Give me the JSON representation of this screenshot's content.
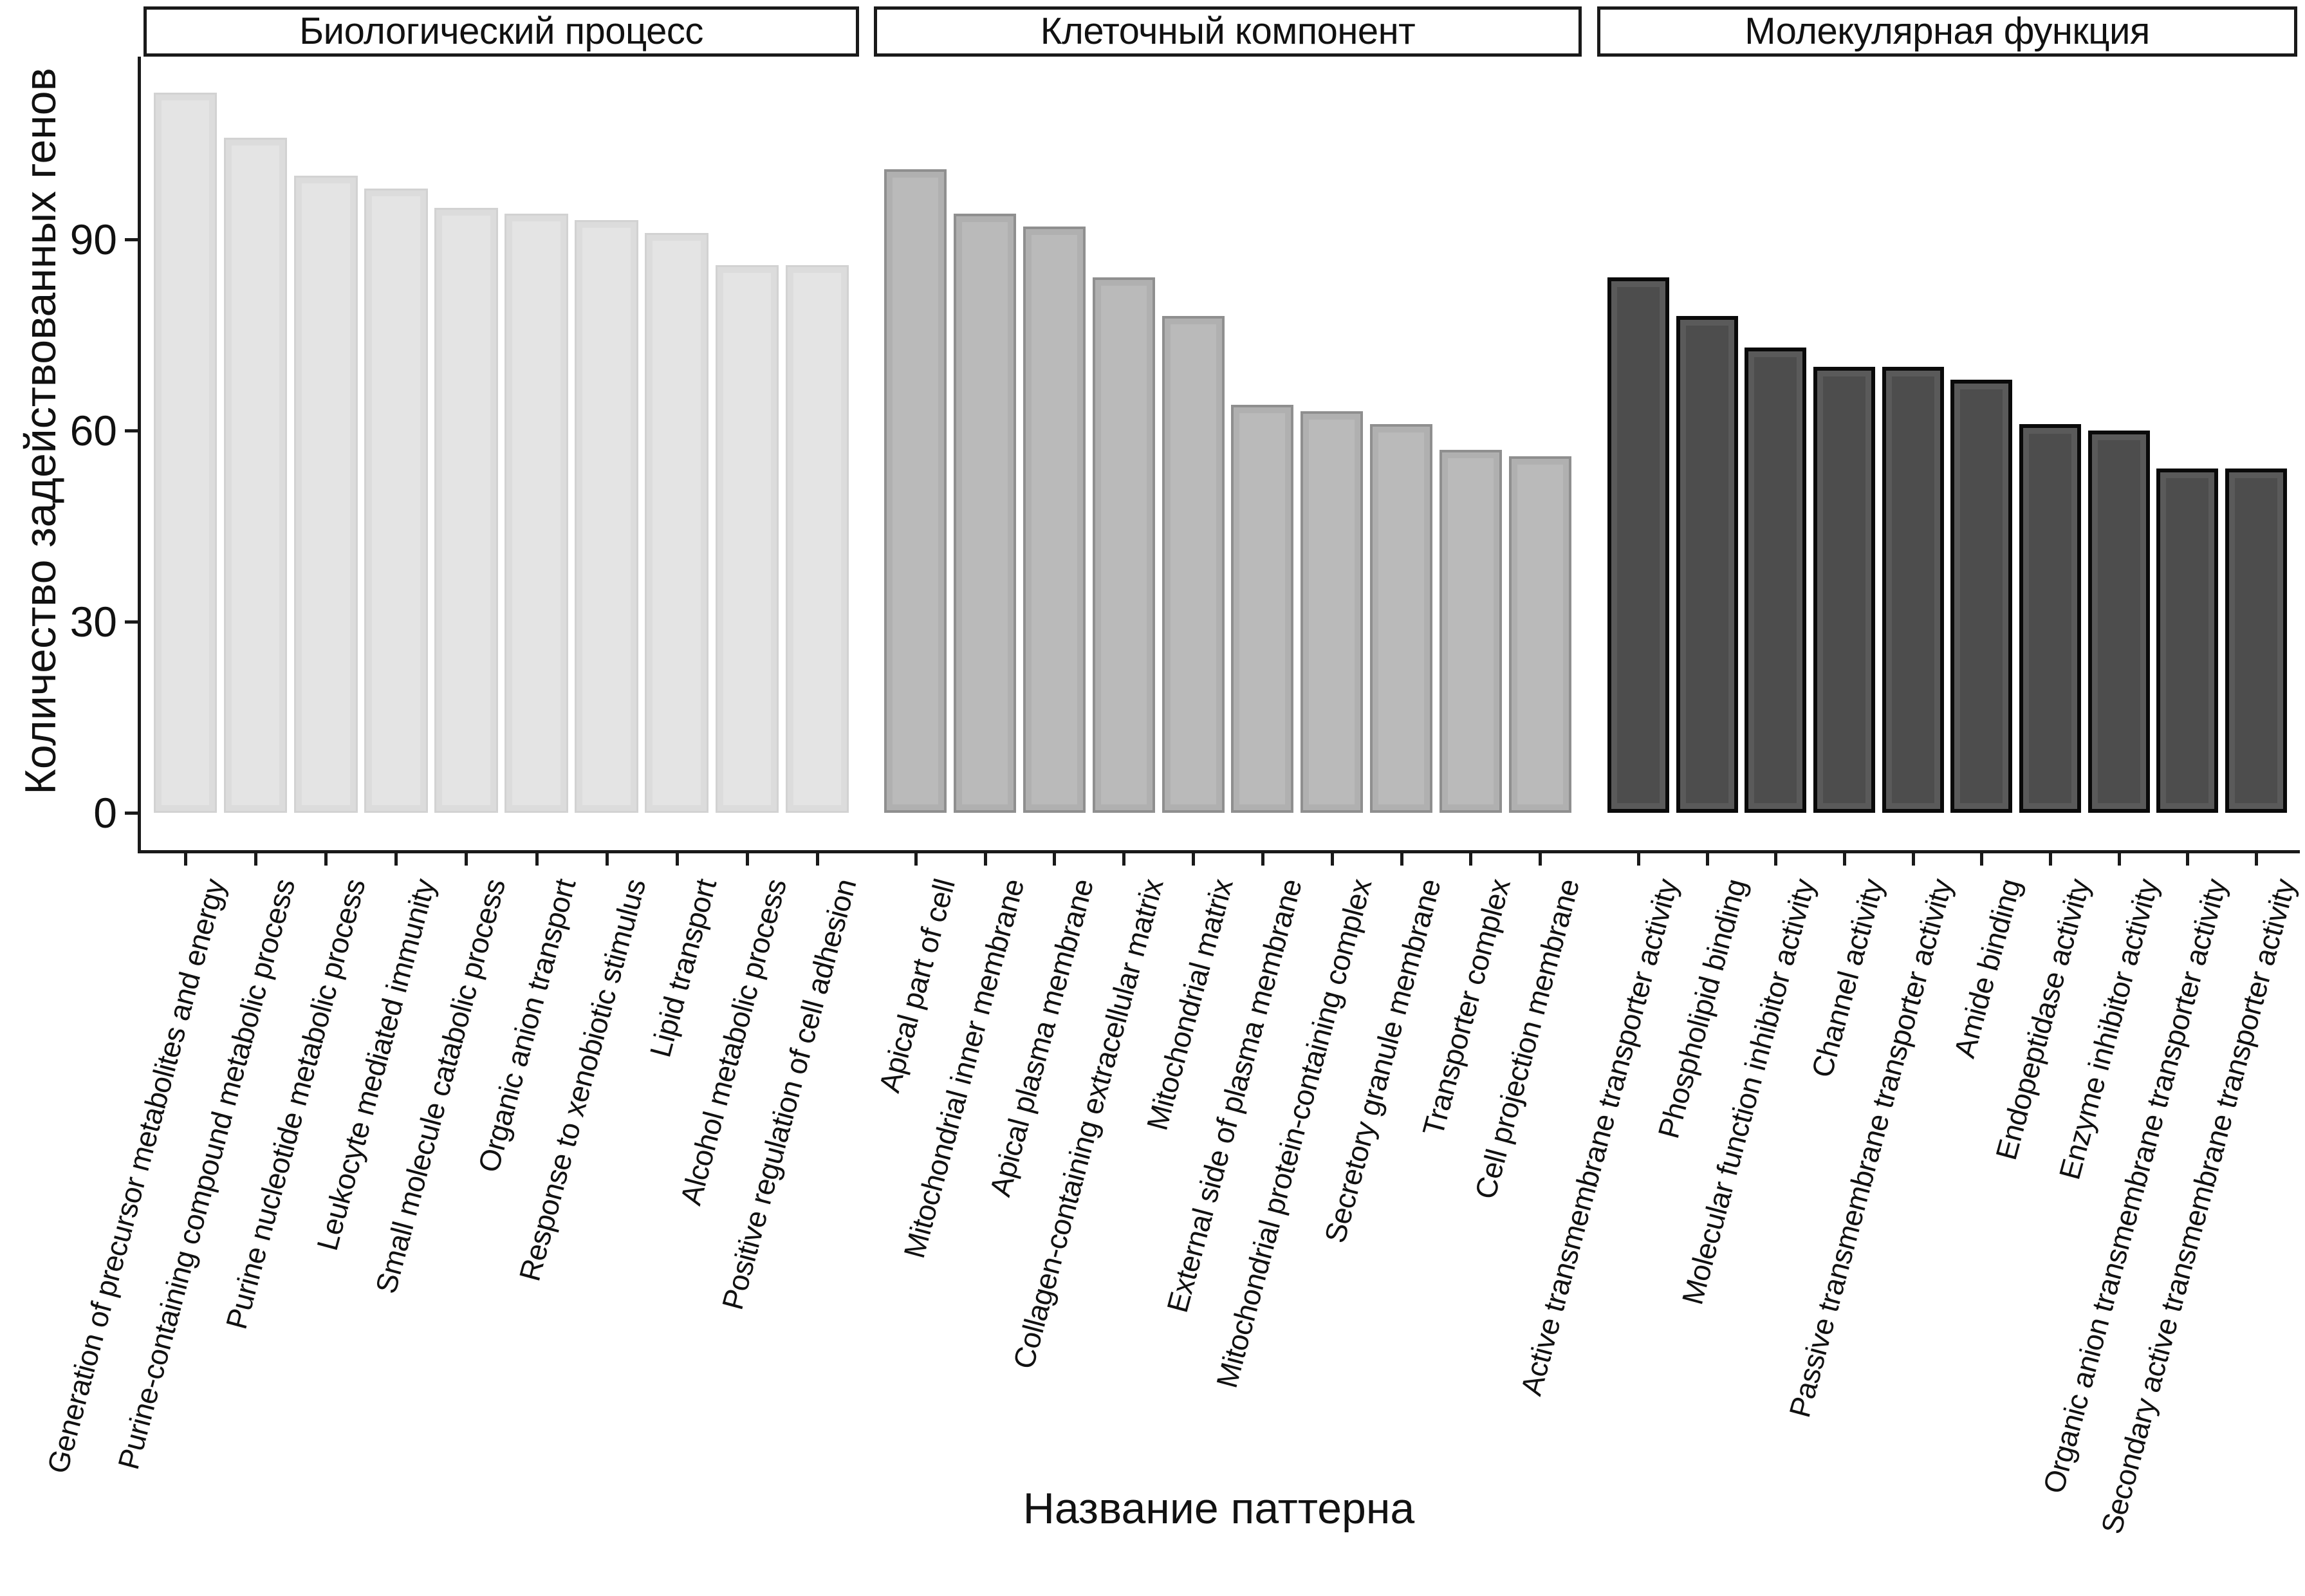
{
  "figure": {
    "background": "#ffffff",
    "axis_color": "#1a1a1a"
  },
  "chart_data": {
    "type": "bar",
    "title": "",
    "xlabel": "Название паттерна",
    "ylabel": "Количество задействованных генов",
    "y_ticks": [
      0,
      30,
      60,
      90
    ],
    "ylim": [
      0,
      118
    ],
    "grid": false,
    "legend": "none",
    "groups": [
      {
        "label": "Биологический процесс",
        "fill": "#e4e4e4",
        "border": "#d2d2d2",
        "categories": [
          "Generation of precursor metabolites and energy",
          "Purine-containing compound metabolic process",
          "Purine nucleotide metabolic process",
          "Leukocyte mediated immunity",
          "Small molecule catabolic process",
          "Organic anion transport",
          "Response to xenobiotic stimulus",
          "Lipid transport",
          "Alcohol metabolic process",
          "Positive regulation of cell adhesion"
        ],
        "values": [
          113,
          106,
          100,
          98,
          95,
          94,
          93,
          91,
          86,
          86
        ]
      },
      {
        "label": "Клеточный компонент",
        "fill": "#bababa",
        "border": "#8f8f8f",
        "categories": [
          "Apical part of cell",
          "Mitochondrial inner membrane",
          "Apical plasma membrane",
          "Collagen-containing extracellular matrix",
          "Mitochondrial matrix",
          "External side of plasma membrane",
          "Mitochondrial protein-containing complex",
          "Secretory granule membrane",
          "Transporter complex",
          "Cell projection membrane"
        ],
        "values": [
          101,
          94,
          92,
          84,
          78,
          64,
          63,
          61,
          57,
          56
        ]
      },
      {
        "label": "Молекулярная функция",
        "fill": "#4d4d4d",
        "border": "#0a0a0a",
        "categories": [
          "Active transmembrane transporter activity",
          "Phospholipid binding",
          "Molecular function inhibitor activity",
          "Channel activity",
          "Passive transmembrane transporter activity",
          "Amide binding",
          "Endopeptidase activity",
          "Enzyme inhibitor activity",
          "Organic anion transmembrane transporter activity",
          "Secondary active transmembrane transporter activity"
        ],
        "values": [
          84,
          78,
          73,
          70,
          70,
          68,
          61,
          60,
          54,
          54
        ]
      }
    ]
  }
}
